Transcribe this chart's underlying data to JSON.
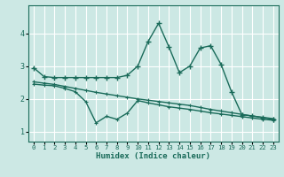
{
  "xlabel": "Humidex (Indice chaleur)",
  "bg_color": "#cce8e4",
  "grid_color": "#ffffff",
  "line_color": "#1a6b5a",
  "xlim": [
    -0.5,
    23.5
  ],
  "ylim": [
    0.7,
    4.85
  ],
  "yticks": [
    1,
    2,
    3,
    4
  ],
  "xticks": [
    0,
    1,
    2,
    3,
    4,
    5,
    6,
    7,
    8,
    9,
    10,
    11,
    12,
    13,
    14,
    15,
    16,
    17,
    18,
    19,
    20,
    21,
    22,
    23
  ],
  "s1_x": [
    0,
    1,
    2,
    3,
    4,
    5,
    6,
    7,
    8,
    9,
    10,
    11,
    12,
    13,
    14,
    15,
    16,
    17,
    18,
    19,
    20,
    21,
    22,
    23
  ],
  "s1_y": [
    2.95,
    2.68,
    2.65,
    2.65,
    2.65,
    2.65,
    2.65,
    2.65,
    2.65,
    2.72,
    3.0,
    3.75,
    4.3,
    3.58,
    2.8,
    3.0,
    3.55,
    3.62,
    3.05,
    2.22,
    1.52,
    1.48,
    1.43,
    1.37
  ],
  "s2_x": [
    0,
    1,
    2,
    3,
    4,
    5,
    6,
    7,
    8,
    9,
    10,
    11,
    12,
    13,
    14,
    15,
    16,
    17,
    18,
    19,
    20,
    21,
    22,
    23
  ],
  "s2_y": [
    2.52,
    2.48,
    2.44,
    2.38,
    2.32,
    2.26,
    2.2,
    2.15,
    2.1,
    2.05,
    2.0,
    1.96,
    1.92,
    1.88,
    1.84,
    1.8,
    1.74,
    1.68,
    1.63,
    1.58,
    1.53,
    1.48,
    1.44,
    1.4
  ],
  "s3_x": [
    0,
    1,
    2,
    3,
    4,
    5,
    6,
    7,
    8,
    9,
    10,
    11,
    12,
    13,
    14,
    15,
    16,
    17,
    18,
    19,
    20,
    21,
    22,
    23
  ],
  "s3_y": [
    2.45,
    2.42,
    2.4,
    2.32,
    2.22,
    1.92,
    1.27,
    1.47,
    1.38,
    1.57,
    1.95,
    1.88,
    1.82,
    1.76,
    1.72,
    1.68,
    1.63,
    1.58,
    1.54,
    1.5,
    1.46,
    1.42,
    1.38,
    1.35
  ]
}
